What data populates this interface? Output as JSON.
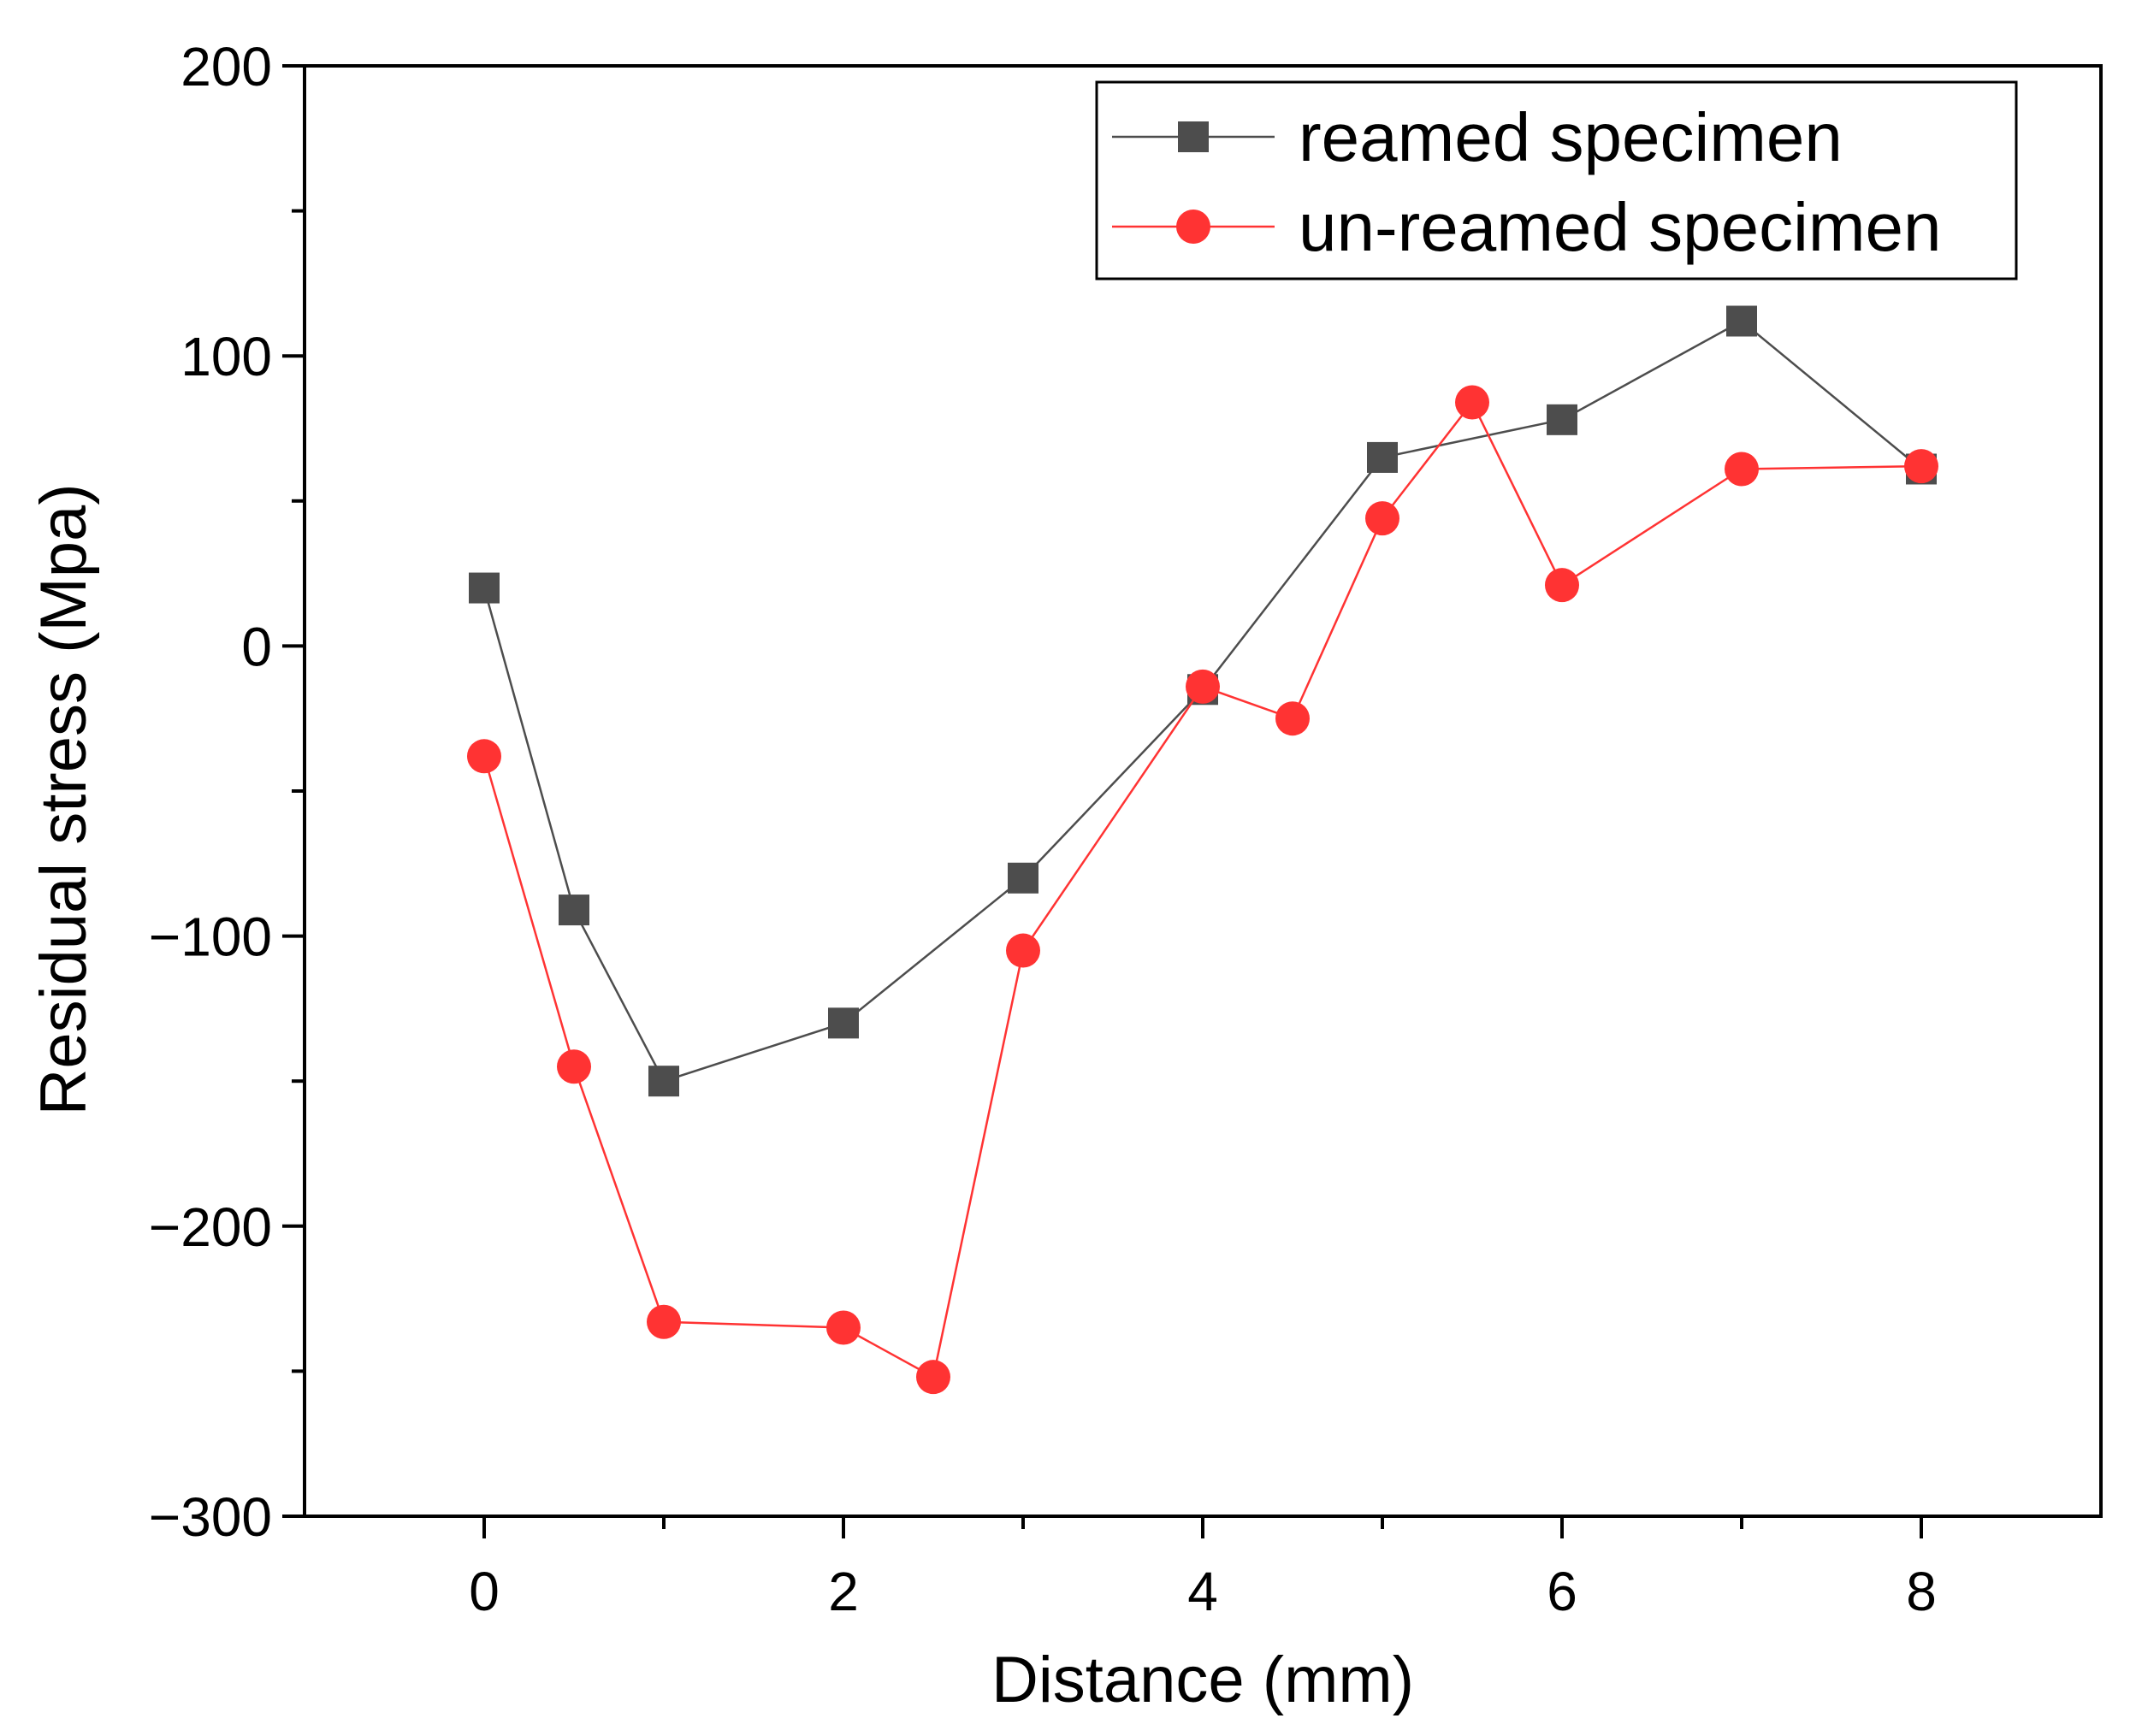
{
  "chart_data": {
    "type": "line",
    "title": "",
    "xlabel": "Distance (mm)",
    "ylabel": "Residual stress (Mpa)",
    "xlim": [
      -1,
      9
    ],
    "ylim": [
      -300,
      200
    ],
    "xticks": [
      0,
      2,
      4,
      6,
      8
    ],
    "xticks_minor": [
      1,
      3,
      5,
      7
    ],
    "yticks": [
      -300,
      -200,
      -100,
      0,
      100,
      200
    ],
    "yticks_minor": [
      -250,
      -150,
      -50,
      50,
      150
    ],
    "xtick_labels": [
      "0",
      "2",
      "4",
      "6",
      "8"
    ],
    "ytick_labels": [
      "−300",
      "−200",
      "−100",
      "0",
      "100",
      "200"
    ],
    "grid": false,
    "legend_position": "top-right",
    "series": [
      {
        "name": "reamed specimen",
        "color": "#4d4d4d",
        "marker": "square",
        "x": [
          0,
          0.5,
          1,
          2,
          3,
          4,
          5,
          6,
          7,
          8
        ],
        "y": [
          20,
          -91,
          -150,
          -130,
          -80,
          -15,
          65,
          78,
          112,
          61
        ]
      },
      {
        "name": "un-reamed specimen",
        "color": "#ff3333",
        "marker": "circle",
        "x": [
          0,
          0.5,
          1,
          2,
          2.5,
          3,
          4,
          4.5,
          5,
          5.5,
          6,
          7,
          8
        ],
        "y": [
          -38,
          -145,
          -233,
          -235,
          -252,
          -105,
          -14,
          -25,
          44,
          84,
          21,
          61,
          62
        ]
      }
    ]
  }
}
